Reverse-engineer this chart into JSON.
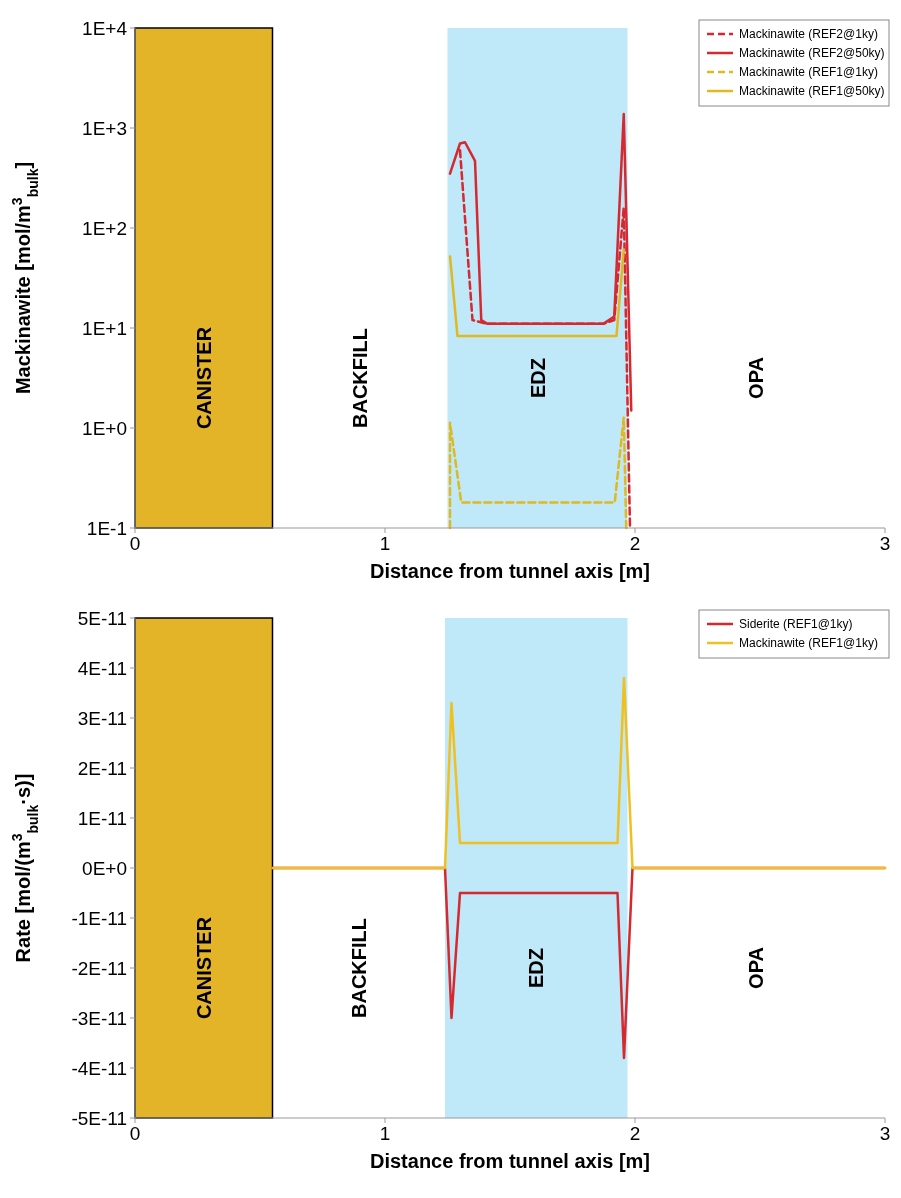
{
  "chart_data": [
    {
      "type": "line",
      "xlabel": "Distance from tunnel axis [m]",
      "ylabel": "Mackinawite [mol/m$^{3}$$_{bulk}$]",
      "log": "y",
      "legend": "top right",
      "xlim": [
        0,
        3
      ],
      "xticks": [
        0,
        1,
        2,
        3
      ],
      "ylim": [
        0.1,
        10000
      ],
      "yticks": [
        {
          "value": 0.1,
          "label": "1E-1"
        },
        {
          "value": 1,
          "label": "1E+0"
        },
        {
          "value": 10,
          "label": "1E+1"
        },
        {
          "value": 100,
          "label": "1E+2"
        },
        {
          "value": 1000,
          "label": "1E+3"
        },
        {
          "value": 10000,
          "label": "1E+4"
        }
      ],
      "bands": [
        {
          "axis": "x",
          "from": 0,
          "to": 0.55,
          "label": "CANISTER",
          "color": "#e3b428"
        },
        {
          "axis": "x",
          "from": 1.25,
          "to": 1.97,
          "label": "EDZ",
          "color": "#bfe8f8"
        }
      ],
      "annotations": [
        "BACKFILL",
        "OPA"
      ],
      "series": [
        {
          "name": "Mackinawite (REF2@1ky)",
          "color": "#d7282f",
          "line_style": "dashed",
          "x": [
            1.3,
            1.35,
            1.41,
            1.873,
            1.917,
            1.955,
            1.98
          ],
          "values": [
            600,
            12,
            11,
            11,
            12,
            160,
            0.1
          ]
        },
        {
          "name": "Mackinawite (REF2@50ky)",
          "color": "#d7282f",
          "line_style": "solid",
          "x": [
            1.26,
            1.3,
            1.32,
            1.36,
            1.385,
            1.41,
            1.873,
            1.917,
            1.955,
            1.985
          ],
          "values": [
            350,
            700,
            720,
            470,
            12,
            11,
            11,
            13,
            1380,
            1.5
          ]
        },
        {
          "name": "Mackinawite (REF1@1ky)",
          "color": "#e0b820",
          "line_style": "dashed",
          "x": [
            1.26,
            1.26,
            1.305,
            1.919,
            1.955,
            1.965
          ],
          "values": [
            0.1,
            1.13,
            0.18,
            0.18,
            1.27,
            0.1
          ]
        },
        {
          "name": "Mackinawite (REF1@50ky)",
          "color": "#e0b820",
          "line_style": "solid",
          "x": [
            1.26,
            1.29,
            1.926,
            1.955
          ],
          "values": [
            52,
            8.3,
            8.3,
            61
          ]
        }
      ]
    },
    {
      "type": "line",
      "xlabel": "Distance from tunnel axis [m]",
      "ylabel": "Rate [mol/(m$^{3}$$_{bulk}$·s)]",
      "legend": "top right",
      "xlim": [
        0,
        3
      ],
      "xticks": [
        0,
        1,
        2,
        3
      ],
      "ylim": [
        -5e-11,
        5e-11
      ],
      "yticks": [
        {
          "value": -5e-11,
          "label": "-5E-11"
        },
        {
          "value": -4e-11,
          "label": "-4E-11"
        },
        {
          "value": -3e-11,
          "label": "-3E-11"
        },
        {
          "value": -2e-11,
          "label": "-2E-11"
        },
        {
          "value": -1e-11,
          "label": "-1E-11"
        },
        {
          "value": 0,
          "label": "0E+0"
        },
        {
          "value": 1e-11,
          "label": "1E-11"
        },
        {
          "value": 2e-11,
          "label": "2E-11"
        },
        {
          "value": 3e-11,
          "label": "3E-11"
        },
        {
          "value": 4e-11,
          "label": "4E-11"
        },
        {
          "value": 5e-11,
          "label": "5E-11"
        }
      ],
      "bands": [
        {
          "axis": "x",
          "from": 0,
          "to": 0.55,
          "label": "CANISTER",
          "color": "#e3b428"
        },
        {
          "axis": "x",
          "from": 1.24,
          "to": 1.97,
          "label": "EDZ",
          "color": "#bfe8f8"
        }
      ],
      "annotations": [
        "BACKFILL",
        "OPA"
      ],
      "series": [
        {
          "name": "Siderite (REF1@1ky)",
          "color": "#d7282f",
          "line_style": "solid",
          "x": [
            0.55,
            1.1,
            1.24,
            1.266,
            1.3,
            1.93,
            1.956,
            1.99,
            3
          ],
          "values": [
            0,
            0,
            0,
            -3e-11,
            -5e-12,
            -5e-12,
            -3.8e-11,
            0,
            0
          ]
        },
        {
          "name": "Mackinawite (REF1@1ky)",
          "color": "#f0c020",
          "line_style": "solid",
          "x": [
            0.55,
            1.1,
            1.24,
            1.266,
            1.3,
            1.93,
            1.956,
            1.99,
            3
          ],
          "values": [
            0,
            0,
            0,
            3.3e-11,
            5e-12,
            5e-12,
            3.8e-11,
            0,
            0
          ]
        }
      ]
    }
  ]
}
